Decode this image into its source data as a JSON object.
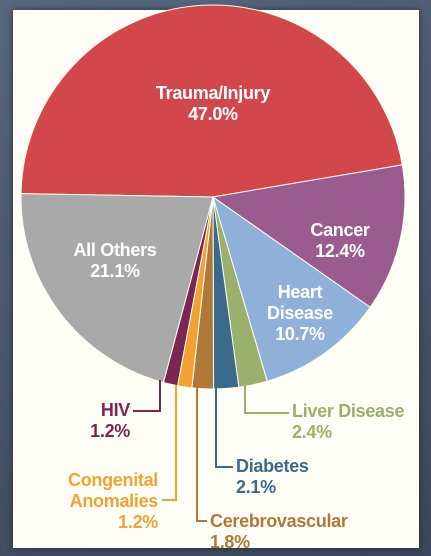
{
  "chart_data": {
    "type": "pie",
    "categories": [
      "Trauma/Injury",
      "Cancer",
      "Heart Disease",
      "Liver Disease",
      "Diabetes",
      "Cerebrovascular",
      "Congenital Anomalies",
      "HIV",
      "All Others"
    ],
    "values": [
      47.0,
      12.4,
      10.7,
      2.4,
      2.1,
      1.8,
      1.2,
      1.2,
      21.1
    ],
    "value_labels": [
      "47.0%",
      "12.4%",
      "10.7%",
      "2.4%",
      "2.1%",
      "1.8%",
      "1.2%",
      "1.2%",
      "21.1%"
    ],
    "colors": [
      "#d2474a",
      "#9a5c8e",
      "#8fb0d8",
      "#9bb06c",
      "#3b6a8a",
      "#b0793a",
      "#f2a233",
      "#7b2552",
      "#a9a9a9"
    ]
  }
}
